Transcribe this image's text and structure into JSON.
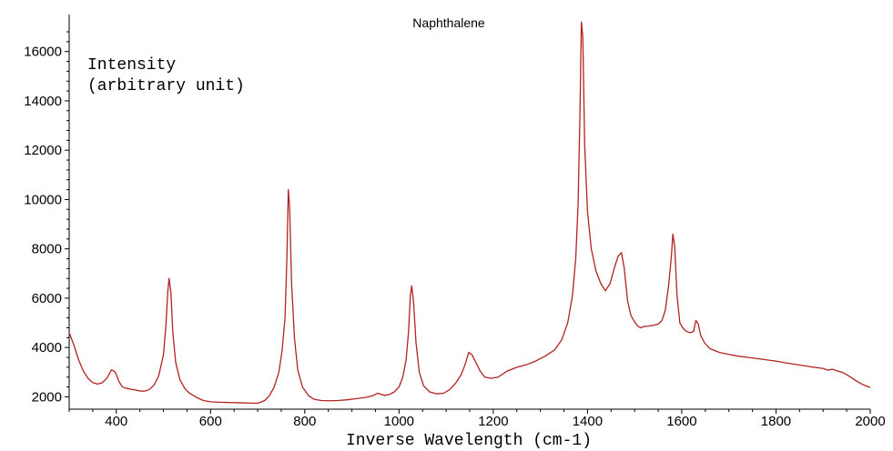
{
  "chart_data": {
    "type": "line",
    "title": "Naphthalene",
    "xlabel": "Inverse Wavelength (cm-1)",
    "ylabel_lines": [
      "Intensity",
      "(arbitrary unit)"
    ],
    "xlim": [
      300,
      2000
    ],
    "ylim": [
      1500,
      17500
    ],
    "x_ticks": [
      400,
      600,
      800,
      1000,
      1200,
      1400,
      1600,
      1800,
      2000
    ],
    "y_ticks": [
      2000,
      4000,
      6000,
      8000,
      10000,
      12000,
      14000,
      16000
    ],
    "grid": false,
    "line_color": "#b22222",
    "series": [
      {
        "values": [
          [
            300,
            4600
          ],
          [
            310,
            4100
          ],
          [
            320,
            3500
          ],
          [
            330,
            3050
          ],
          [
            340,
            2750
          ],
          [
            350,
            2580
          ],
          [
            360,
            2520
          ],
          [
            370,
            2570
          ],
          [
            380,
            2750
          ],
          [
            390,
            3100
          ],
          [
            398,
            3000
          ],
          [
            405,
            2650
          ],
          [
            412,
            2420
          ],
          [
            420,
            2350
          ],
          [
            430,
            2310
          ],
          [
            440,
            2280
          ],
          [
            450,
            2240
          ],
          [
            460,
            2230
          ],
          [
            470,
            2300
          ],
          [
            480,
            2480
          ],
          [
            490,
            2850
          ],
          [
            500,
            3700
          ],
          [
            505,
            4800
          ],
          [
            509,
            6200
          ],
          [
            512,
            6800
          ],
          [
            516,
            6200
          ],
          [
            520,
            4600
          ],
          [
            526,
            3400
          ],
          [
            535,
            2700
          ],
          [
            545,
            2350
          ],
          [
            555,
            2150
          ],
          [
            570,
            1980
          ],
          [
            585,
            1850
          ],
          [
            600,
            1800
          ],
          [
            620,
            1780
          ],
          [
            640,
            1770
          ],
          [
            660,
            1760
          ],
          [
            680,
            1750
          ],
          [
            700,
            1740
          ],
          [
            715,
            1850
          ],
          [
            725,
            2050
          ],
          [
            735,
            2400
          ],
          [
            745,
            3000
          ],
          [
            752,
            3900
          ],
          [
            758,
            5200
          ],
          [
            762,
            7600
          ],
          [
            765,
            10400
          ],
          [
            768,
            9600
          ],
          [
            772,
            6600
          ],
          [
            778,
            4400
          ],
          [
            785,
            3100
          ],
          [
            795,
            2400
          ],
          [
            808,
            2050
          ],
          [
            820,
            1900
          ],
          [
            835,
            1850
          ],
          [
            850,
            1840
          ],
          [
            870,
            1850
          ],
          [
            890,
            1880
          ],
          [
            910,
            1930
          ],
          [
            930,
            1980
          ],
          [
            945,
            2050
          ],
          [
            955,
            2150
          ],
          [
            962,
            2100
          ],
          [
            970,
            2060
          ],
          [
            980,
            2100
          ],
          [
            990,
            2200
          ],
          [
            1000,
            2400
          ],
          [
            1008,
            2800
          ],
          [
            1015,
            3500
          ],
          [
            1020,
            4600
          ],
          [
            1024,
            6100
          ],
          [
            1027,
            6500
          ],
          [
            1031,
            5800
          ],
          [
            1036,
            4200
          ],
          [
            1043,
            3000
          ],
          [
            1052,
            2450
          ],
          [
            1065,
            2200
          ],
          [
            1080,
            2120
          ],
          [
            1095,
            2150
          ],
          [
            1108,
            2300
          ],
          [
            1120,
            2550
          ],
          [
            1132,
            2900
          ],
          [
            1140,
            3300
          ],
          [
            1148,
            3800
          ],
          [
            1155,
            3700
          ],
          [
            1163,
            3400
          ],
          [
            1172,
            3050
          ],
          [
            1182,
            2800
          ],
          [
            1195,
            2750
          ],
          [
            1210,
            2800
          ],
          [
            1230,
            3050
          ],
          [
            1250,
            3200
          ],
          [
            1270,
            3300
          ],
          [
            1290,
            3450
          ],
          [
            1310,
            3650
          ],
          [
            1330,
            3900
          ],
          [
            1345,
            4300
          ],
          [
            1358,
            5000
          ],
          [
            1368,
            6100
          ],
          [
            1375,
            7600
          ],
          [
            1380,
            9800
          ],
          [
            1384,
            13500
          ],
          [
            1387,
            17200
          ],
          [
            1390,
            16600
          ],
          [
            1394,
            12200
          ],
          [
            1400,
            9500
          ],
          [
            1408,
            8000
          ],
          [
            1418,
            7100
          ],
          [
            1428,
            6600
          ],
          [
            1438,
            6300
          ],
          [
            1448,
            6600
          ],
          [
            1458,
            7300
          ],
          [
            1465,
            7700
          ],
          [
            1472,
            7850
          ],
          [
            1478,
            7200
          ],
          [
            1485,
            5900
          ],
          [
            1492,
            5300
          ],
          [
            1498,
            5100
          ],
          [
            1505,
            4900
          ],
          [
            1512,
            4800
          ],
          [
            1520,
            4850
          ],
          [
            1530,
            4870
          ],
          [
            1540,
            4900
          ],
          [
            1550,
            4950
          ],
          [
            1558,
            5100
          ],
          [
            1565,
            5500
          ],
          [
            1572,
            6500
          ],
          [
            1578,
            7700
          ],
          [
            1581,
            8600
          ],
          [
            1585,
            8100
          ],
          [
            1590,
            6100
          ],
          [
            1596,
            5000
          ],
          [
            1602,
            4800
          ],
          [
            1610,
            4650
          ],
          [
            1618,
            4600
          ],
          [
            1625,
            4650
          ],
          [
            1630,
            5100
          ],
          [
            1635,
            4950
          ],
          [
            1640,
            4500
          ],
          [
            1648,
            4200
          ],
          [
            1660,
            3950
          ],
          [
            1680,
            3800
          ],
          [
            1700,
            3720
          ],
          [
            1720,
            3650
          ],
          [
            1740,
            3600
          ],
          [
            1760,
            3550
          ],
          [
            1780,
            3500
          ],
          [
            1800,
            3450
          ],
          [
            1820,
            3380
          ],
          [
            1840,
            3320
          ],
          [
            1860,
            3260
          ],
          [
            1880,
            3200
          ],
          [
            1900,
            3150
          ],
          [
            1910,
            3080
          ],
          [
            1920,
            3120
          ],
          [
            1930,
            3050
          ],
          [
            1940,
            3000
          ],
          [
            1950,
            2900
          ],
          [
            1960,
            2780
          ],
          [
            1970,
            2650
          ],
          [
            1980,
            2540
          ],
          [
            1990,
            2450
          ],
          [
            2000,
            2380
          ]
        ]
      }
    ]
  }
}
